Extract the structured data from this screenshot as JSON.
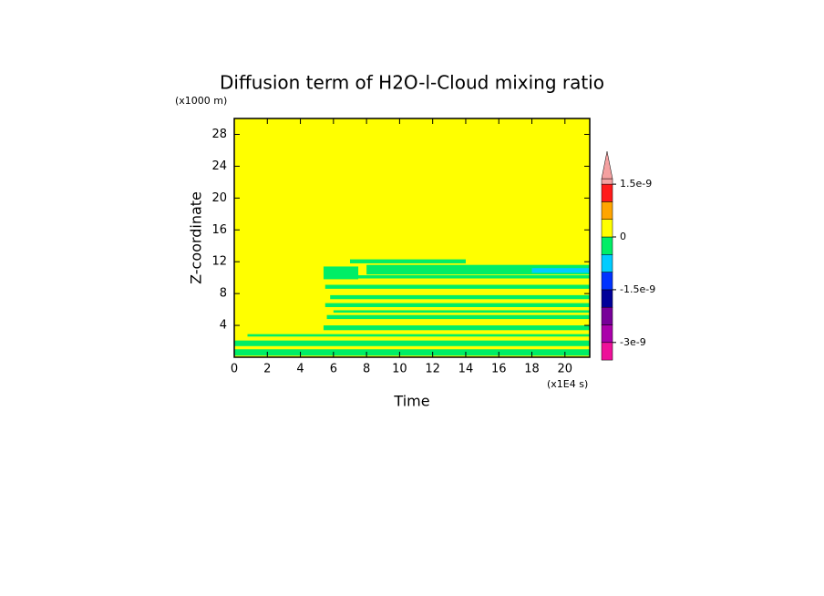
{
  "chart_data": {
    "type": "contour",
    "title": "Diffusion term of H2O-l-Cloud mixing ratio",
    "x_label": "Time",
    "x_unit": "(x1E4 s)",
    "y_label": "Z-coordinate",
    "y_unit": "(x1000 m)",
    "xlim": [
      0,
      21.5
    ],
    "xticks": [
      0,
      2,
      4,
      6,
      8,
      10,
      12,
      14,
      16,
      18,
      20
    ],
    "ylim": [
      0,
      30
    ],
    "yticks": [
      4,
      8,
      12,
      16,
      20,
      24,
      28
    ],
    "background_value": 2.5e-10,
    "regions": [
      {
        "x": [
          0,
          21.5
        ],
        "y": [
          0.2,
          1.0
        ],
        "value": -2.5e-10
      },
      {
        "x": [
          0,
          21.5
        ],
        "y": [
          1.4,
          2.1
        ],
        "value": -2.5e-10
      },
      {
        "x": [
          0.8,
          21.5
        ],
        "y": [
          2.6,
          2.9
        ],
        "value": -2.5e-10
      },
      {
        "x": [
          5.4,
          21.5
        ],
        "y": [
          3.4,
          4.0
        ],
        "value": -2.5e-10
      },
      {
        "x": [
          5.6,
          21.5
        ],
        "y": [
          4.8,
          5.3
        ],
        "value": -2.5e-10
      },
      {
        "x": [
          6,
          21.5
        ],
        "y": [
          5.6,
          5.9
        ],
        "value": -2.5e-10
      },
      {
        "x": [
          5.5,
          21.5
        ],
        "y": [
          6.3,
          6.8
        ],
        "value": -2.5e-10
      },
      {
        "x": [
          5.8,
          21.5
        ],
        "y": [
          7.3,
          7.8
        ],
        "value": -2.5e-10
      },
      {
        "x": [
          5.5,
          21.5
        ],
        "y": [
          8.6,
          9.1
        ],
        "value": -2.5e-10
      },
      {
        "x": [
          5.4,
          7.5
        ],
        "y": [
          9.8,
          11.4
        ],
        "value": -2.5e-10
      },
      {
        "x": [
          7,
          21.5
        ],
        "y": [
          9.9,
          10.3
        ],
        "value": -2.5e-10
      },
      {
        "x": [
          8,
          21.5
        ],
        "y": [
          10.4,
          11.6
        ],
        "value": -2.5e-10
      },
      {
        "x": [
          7,
          14
        ],
        "y": [
          11.8,
          12.3
        ],
        "value": -2.5e-10
      },
      {
        "x": [
          18,
          21.5
        ],
        "y": [
          10.6,
          11.2
        ],
        "value": -7.5e-10
      }
    ],
    "levels": [
      -3.5e-09,
      -3e-09,
      -2.5e-09,
      -2e-09,
      -1.5e-09,
      -1e-09,
      -5e-10,
      0,
      5e-10,
      1e-09,
      1.5e-09
    ],
    "colors": [
      "#ee1199",
      "#aa00aa",
      "#770099",
      "#000099",
      "#0033ff",
      "#00ccff",
      "#00ee66",
      "#ffff00",
      "#ffa500",
      "#ff1a1a"
    ],
    "extend_color": "#f4a0a0",
    "colorbar_ticks": [
      {
        "value": 1.5e-09,
        "label": "1.5e-9"
      },
      0,
      {
        "value": -1.5e-09,
        "label": "-1.5e-9"
      },
      {
        "value": -3e-09,
        "label": "-3e-9"
      }
    ]
  }
}
